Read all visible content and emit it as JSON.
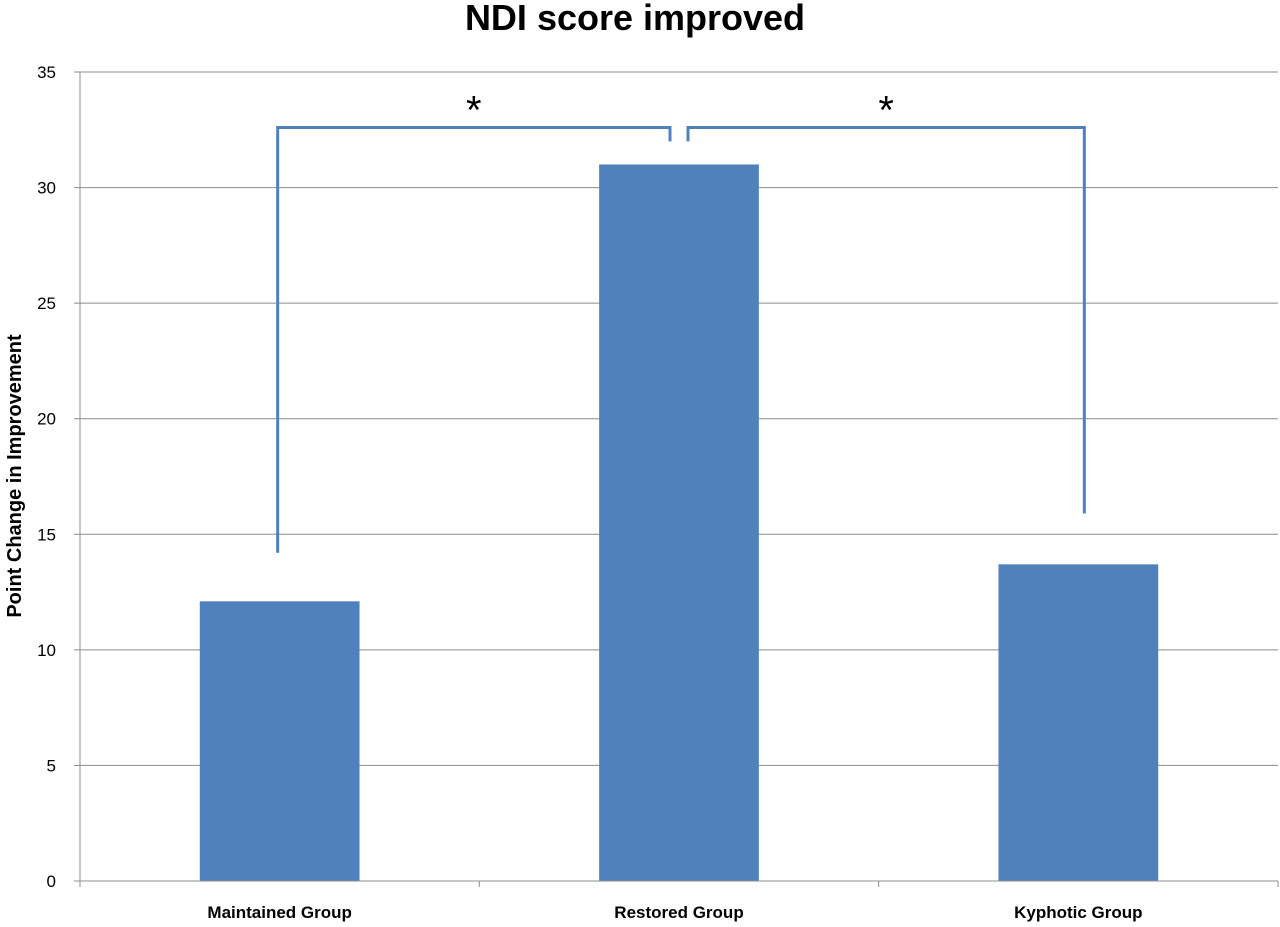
{
  "chart_data": {
    "type": "bar",
    "title": "NDI score improved",
    "xlabel": "",
    "ylabel": "Point Change in Improvement",
    "categories": [
      "Maintained Group",
      "Restored Group",
      "Kyphotic Group"
    ],
    "values": [
      12.1,
      31.0,
      13.7
    ],
    "ylim": [
      0,
      35
    ],
    "yticks": [
      0,
      5,
      10,
      15,
      20,
      25,
      30,
      35
    ],
    "grid": true,
    "legend": "none",
    "bar_color": "#4F81BD",
    "bracket_color": "#4F81BD",
    "annotations": [
      {
        "label": "*",
        "from_category": 0,
        "to_category": 1,
        "bracket_level": 32.6,
        "left_leg_bottom": 14.2,
        "right_leg_bottom": 32.0
      },
      {
        "label": "*",
        "from_category": 1,
        "to_category": 2,
        "bracket_level": 32.6,
        "left_leg_bottom": 32.0,
        "right_leg_bottom": 15.9
      }
    ]
  }
}
